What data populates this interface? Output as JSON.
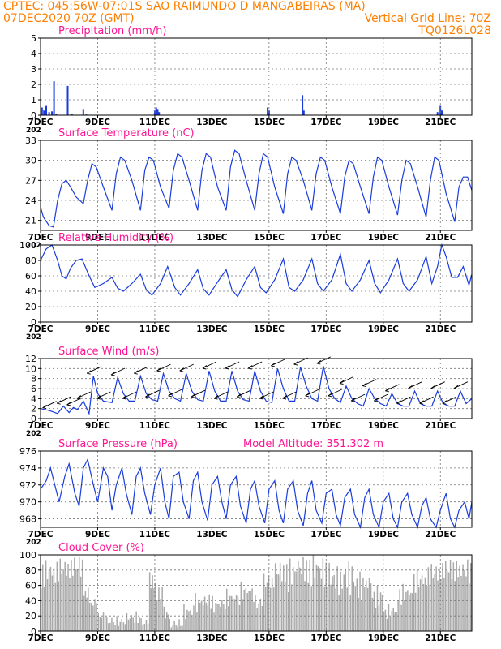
{
  "header": {
    "line1_left": "CPTEC:   045:56W-07:01S  SAO RAIMUNDO D MANGABEIRAS (MA)",
    "line2_left": "07DEC2020 70Z (GMT)",
    "line2_right": "Vertical Grid Line: 70Z",
    "line3_right": "TQ0126L028"
  },
  "colors": {
    "header": "#ff7f00",
    "title": "#ff1493",
    "series": "#1a3cdc",
    "cloud": "#aaaaaa",
    "grid": "#777777"
  },
  "x_axis": {
    "range_days": [
      7,
      22.1
    ],
    "ticks": [
      {
        "day": 7,
        "label": "7DEC"
      },
      {
        "day": 9,
        "label": "9DEC"
      },
      {
        "day": 11,
        "label": "11DEC"
      },
      {
        "day": 13,
        "label": "13DEC"
      },
      {
        "day": 15,
        "label": "15DEC"
      },
      {
        "day": 17,
        "label": "17DEC"
      },
      {
        "day": 19,
        "label": "19DEC"
      },
      {
        "day": 21,
        "label": "21DEC"
      }
    ],
    "year_label": "202"
  },
  "chart_data": [
    {
      "id": "precip",
      "type": "bar",
      "title": "Precipitation (mm/h)",
      "ylim": [
        0,
        5
      ],
      "yticks": [
        0,
        1,
        2,
        3,
        4,
        5
      ],
      "bars": [
        [
          7.05,
          0.5
        ],
        [
          7.12,
          0.3
        ],
        [
          7.2,
          0.6
        ],
        [
          7.3,
          0.2
        ],
        [
          7.4,
          0.25
        ],
        [
          7.47,
          2.2
        ],
        [
          7.55,
          0.1
        ],
        [
          7.95,
          1.9
        ],
        [
          8.1,
          0.1
        ],
        [
          8.5,
          0.4
        ],
        [
          8.6,
          0.05
        ],
        [
          11.0,
          0.3
        ],
        [
          11.05,
          0.5
        ],
        [
          11.1,
          0.4
        ],
        [
          11.15,
          0.2
        ],
        [
          14.95,
          0.5
        ],
        [
          15.0,
          0.3
        ],
        [
          16.17,
          1.3
        ],
        [
          16.22,
          0.3
        ],
        [
          20.9,
          0.2
        ],
        [
          21.0,
          0.6
        ],
        [
          21.05,
          0.3
        ]
      ]
    },
    {
      "id": "temp",
      "type": "line",
      "title": "Surface Temperature (nC)",
      "ylim": [
        19.5,
        33
      ],
      "yticks": [
        21,
        24,
        27,
        30,
        33
      ],
      "x": [
        7.0,
        7.1,
        7.3,
        7.45,
        7.6,
        7.75,
        7.9,
        8.05,
        8.25,
        8.5,
        8.65,
        8.8,
        8.95,
        9.2,
        9.5,
        9.65,
        9.8,
        9.95,
        10.2,
        10.5,
        10.65,
        10.8,
        10.95,
        11.2,
        11.5,
        11.65,
        11.8,
        11.95,
        12.2,
        12.5,
        12.65,
        12.8,
        12.95,
        13.2,
        13.5,
        13.65,
        13.8,
        13.95,
        14.2,
        14.5,
        14.65,
        14.8,
        14.95,
        15.2,
        15.5,
        15.65,
        15.8,
        15.95,
        16.2,
        16.5,
        16.65,
        16.8,
        16.95,
        17.2,
        17.5,
        17.65,
        17.8,
        17.95,
        18.2,
        18.5,
        18.65,
        18.8,
        18.95,
        19.2,
        19.5,
        19.65,
        19.8,
        19.95,
        20.2,
        20.5,
        20.65,
        20.8,
        20.95,
        21.2,
        21.5,
        21.65,
        21.8,
        21.95,
        22.1
      ],
      "y": [
        23,
        21.5,
        20.2,
        20,
        24,
        26.5,
        27,
        26,
        24.5,
        23.5,
        27,
        29.5,
        29,
        26,
        22.5,
        28,
        30.5,
        30,
        27,
        22.5,
        28.5,
        30.5,
        30,
        26,
        22.8,
        28.5,
        31,
        30.5,
        27,
        22.5,
        28.5,
        31,
        30.5,
        26,
        22.5,
        29,
        31.5,
        31,
        27,
        22.5,
        28,
        31,
        30.5,
        26,
        22,
        28,
        30.5,
        30,
        27,
        22.5,
        28,
        30.5,
        30,
        26,
        22,
        27.5,
        30,
        29.5,
        26,
        22,
        27.5,
        30.5,
        30,
        26,
        21.8,
        27,
        30,
        29.5,
        26,
        21.5,
        27,
        30.5,
        30,
        25,
        20.8,
        26,
        27.5,
        27.5,
        25.5
      ]
    },
    {
      "id": "rh",
      "type": "line",
      "title": "Relative Humidity (%)",
      "ylim": [
        0,
        100
      ],
      "yticks": [
        0,
        20,
        40,
        60,
        80,
        100
      ],
      "x": [
        7.0,
        7.2,
        7.4,
        7.6,
        7.75,
        7.9,
        8.05,
        8.25,
        8.45,
        8.7,
        8.9,
        9.2,
        9.5,
        9.7,
        9.9,
        10.2,
        10.5,
        10.7,
        10.9,
        11.2,
        11.45,
        11.7,
        11.9,
        12.2,
        12.5,
        12.7,
        12.9,
        13.2,
        13.5,
        13.7,
        13.9,
        14.2,
        14.5,
        14.7,
        14.9,
        15.2,
        15.5,
        15.7,
        15.9,
        16.2,
        16.5,
        16.7,
        16.9,
        17.2,
        17.5,
        17.7,
        17.9,
        18.2,
        18.5,
        18.7,
        18.9,
        19.2,
        19.5,
        19.7,
        19.9,
        20.2,
        20.5,
        20.7,
        20.9,
        21.05,
        21.2,
        21.4,
        21.6,
        21.8,
        22.0,
        22.1
      ],
      "y": [
        80,
        95,
        100,
        80,
        60,
        56,
        70,
        80,
        82,
        60,
        45,
        50,
        58,
        44,
        40,
        50,
        62,
        42,
        35,
        50,
        72,
        45,
        35,
        50,
        68,
        43,
        35,
        52,
        68,
        42,
        33,
        55,
        72,
        45,
        38,
        55,
        82,
        45,
        40,
        55,
        82,
        50,
        40,
        55,
        88,
        50,
        40,
        55,
        80,
        50,
        38,
        55,
        82,
        50,
        40,
        55,
        85,
        50,
        72,
        100,
        85,
        58,
        58,
        72,
        48,
        62
      ]
    },
    {
      "id": "wind",
      "type": "line",
      "title": "Surface Wind (m/s)",
      "ylim": [
        0,
        12
      ],
      "yticks": [
        0,
        2,
        4,
        6,
        8,
        10,
        12
      ],
      "x": [
        7.0,
        7.3,
        7.6,
        7.8,
        8.0,
        8.15,
        8.3,
        8.5,
        8.7,
        8.85,
        9.0,
        9.2,
        9.5,
        9.7,
        9.9,
        10.1,
        10.3,
        10.5,
        10.7,
        10.9,
        11.1,
        11.3,
        11.5,
        11.7,
        11.9,
        12.1,
        12.3,
        12.5,
        12.7,
        12.9,
        13.1,
        13.3,
        13.5,
        13.7,
        13.9,
        14.1,
        14.3,
        14.5,
        14.7,
        14.9,
        15.1,
        15.3,
        15.5,
        15.7,
        15.9,
        16.1,
        16.3,
        16.5,
        16.7,
        16.9,
        17.1,
        17.3,
        17.5,
        17.7,
        17.9,
        18.1,
        18.3,
        18.5,
        18.7,
        18.9,
        19.1,
        19.3,
        19.5,
        19.7,
        19.9,
        20.1,
        20.3,
        20.5,
        20.7,
        20.9,
        21.1,
        21.3,
        21.5,
        21.7,
        21.9,
        22.1
      ],
      "y": [
        2,
        1.6,
        1,
        2.5,
        1.2,
        2.2,
        1.8,
        3.5,
        1,
        8.5,
        5,
        3.5,
        3.2,
        8.2,
        5,
        3.5,
        3.5,
        8.5,
        5,
        3.8,
        3.5,
        9,
        5.5,
        4,
        3.5,
        9,
        5.5,
        3.8,
        3.5,
        9.5,
        5.5,
        3.5,
        3.5,
        9.5,
        5.5,
        3.8,
        3.5,
        9.5,
        5.5,
        3.5,
        3.2,
        10,
        6,
        3.5,
        3.5,
        10.3,
        6.5,
        4,
        3.5,
        10.5,
        6,
        4,
        3.2,
        6.5,
        4,
        3,
        2.5,
        6,
        4,
        3,
        2.5,
        5,
        3,
        2.5,
        2.5,
        5.5,
        3,
        2.5,
        2.5,
        5.5,
        3,
        2.5,
        2.5,
        5.5,
        3,
        4
      ]
    },
    {
      "id": "pressure",
      "type": "line",
      "title": "Surface Pressure (hPa)",
      "subtitle": "Model Altitude: 351.302 m",
      "ylim": [
        967,
        976
      ],
      "yticks": [
        968,
        970,
        972,
        974,
        976
      ],
      "x": [
        7.0,
        7.2,
        7.35,
        7.5,
        7.65,
        7.85,
        8.0,
        8.2,
        8.35,
        8.5,
        8.65,
        8.85,
        9.0,
        9.2,
        9.35,
        9.5,
        9.65,
        9.85,
        10.0,
        10.2,
        10.35,
        10.5,
        10.65,
        10.85,
        11.0,
        11.2,
        11.35,
        11.5,
        11.65,
        11.85,
        12.0,
        12.2,
        12.35,
        12.5,
        12.65,
        12.85,
        13.0,
        13.2,
        13.35,
        13.5,
        13.65,
        13.85,
        14.0,
        14.2,
        14.35,
        14.5,
        14.65,
        14.85,
        15.0,
        15.2,
        15.35,
        15.5,
        15.65,
        15.85,
        16.0,
        16.2,
        16.35,
        16.5,
        16.65,
        16.85,
        17.0,
        17.2,
        17.35,
        17.5,
        17.65,
        17.85,
        18.0,
        18.2,
        18.35,
        18.5,
        18.65,
        18.85,
        19.0,
        19.2,
        19.35,
        19.5,
        19.65,
        19.85,
        20.0,
        20.2,
        20.35,
        20.5,
        20.65,
        20.85,
        21.0,
        21.2,
        21.35,
        21.5,
        21.65,
        21.85,
        22.0,
        22.1
      ],
      "y": [
        971.5,
        972.5,
        974,
        972,
        970,
        973,
        974.5,
        971,
        969.5,
        974,
        975,
        972,
        970,
        974,
        973,
        969,
        972,
        974,
        971,
        968.5,
        973,
        974,
        971,
        968.5,
        972,
        974,
        970,
        968,
        973,
        973.5,
        970,
        968,
        972.5,
        973.5,
        970,
        967.8,
        972,
        973,
        970,
        968,
        972,
        973,
        969.5,
        967.5,
        971.5,
        972.5,
        969.5,
        967.5,
        971.5,
        972.5,
        969,
        967.5,
        971.5,
        972.5,
        969,
        967.2,
        971,
        972.5,
        969,
        967.5,
        971,
        971.5,
        968.5,
        967.2,
        970.5,
        971.5,
        968.5,
        967,
        970.5,
        971.5,
        968.5,
        967,
        970,
        971,
        968,
        967,
        970,
        971,
        968.5,
        967,
        969.5,
        970.5,
        968,
        967,
        969,
        971,
        968,
        967,
        969,
        970,
        968,
        970
      ]
    },
    {
      "id": "cloud",
      "type": "bar",
      "title": "Cloud Cover (%)",
      "ylim": [
        0,
        100
      ],
      "yticks": [
        0,
        20,
        40,
        60,
        80,
        100
      ],
      "segments": [
        [
          7.0,
          7.5,
          88
        ],
        [
          7.5,
          8.0,
          92
        ],
        [
          8.0,
          8.5,
          96
        ],
        [
          8.5,
          8.7,
          55
        ],
        [
          8.7,
          9.0,
          40
        ],
        [
          9.0,
          9.3,
          20
        ],
        [
          9.3,
          10.0,
          12
        ],
        [
          10.0,
          10.5,
          18
        ],
        [
          10.5,
          10.8,
          10
        ],
        [
          10.8,
          11.0,
          75
        ],
        [
          11.0,
          11.3,
          58
        ],
        [
          11.3,
          11.5,
          25
        ],
        [
          11.5,
          12.0,
          8
        ],
        [
          12.0,
          12.4,
          28
        ],
        [
          12.4,
          13.0,
          42
        ],
        [
          13.0,
          13.5,
          38
        ],
        [
          13.5,
          14.0,
          48
        ],
        [
          14.0,
          14.5,
          58
        ],
        [
          14.5,
          14.8,
          40
        ],
        [
          14.8,
          15.2,
          72
        ],
        [
          15.2,
          16.0,
          88
        ],
        [
          16.0,
          16.7,
          94
        ],
        [
          16.7,
          17.2,
          90
        ],
        [
          17.2,
          17.6,
          78
        ],
        [
          17.6,
          18.0,
          85
        ],
        [
          18.0,
          18.6,
          70
        ],
        [
          18.6,
          19.0,
          52
        ],
        [
          19.0,
          19.5,
          28
        ],
        [
          19.5,
          20.0,
          55
        ],
        [
          20.0,
          20.5,
          75
        ],
        [
          20.5,
          21.0,
          85
        ],
        [
          21.0,
          21.6,
          92
        ],
        [
          21.6,
          22.1,
          90
        ]
      ]
    }
  ]
}
